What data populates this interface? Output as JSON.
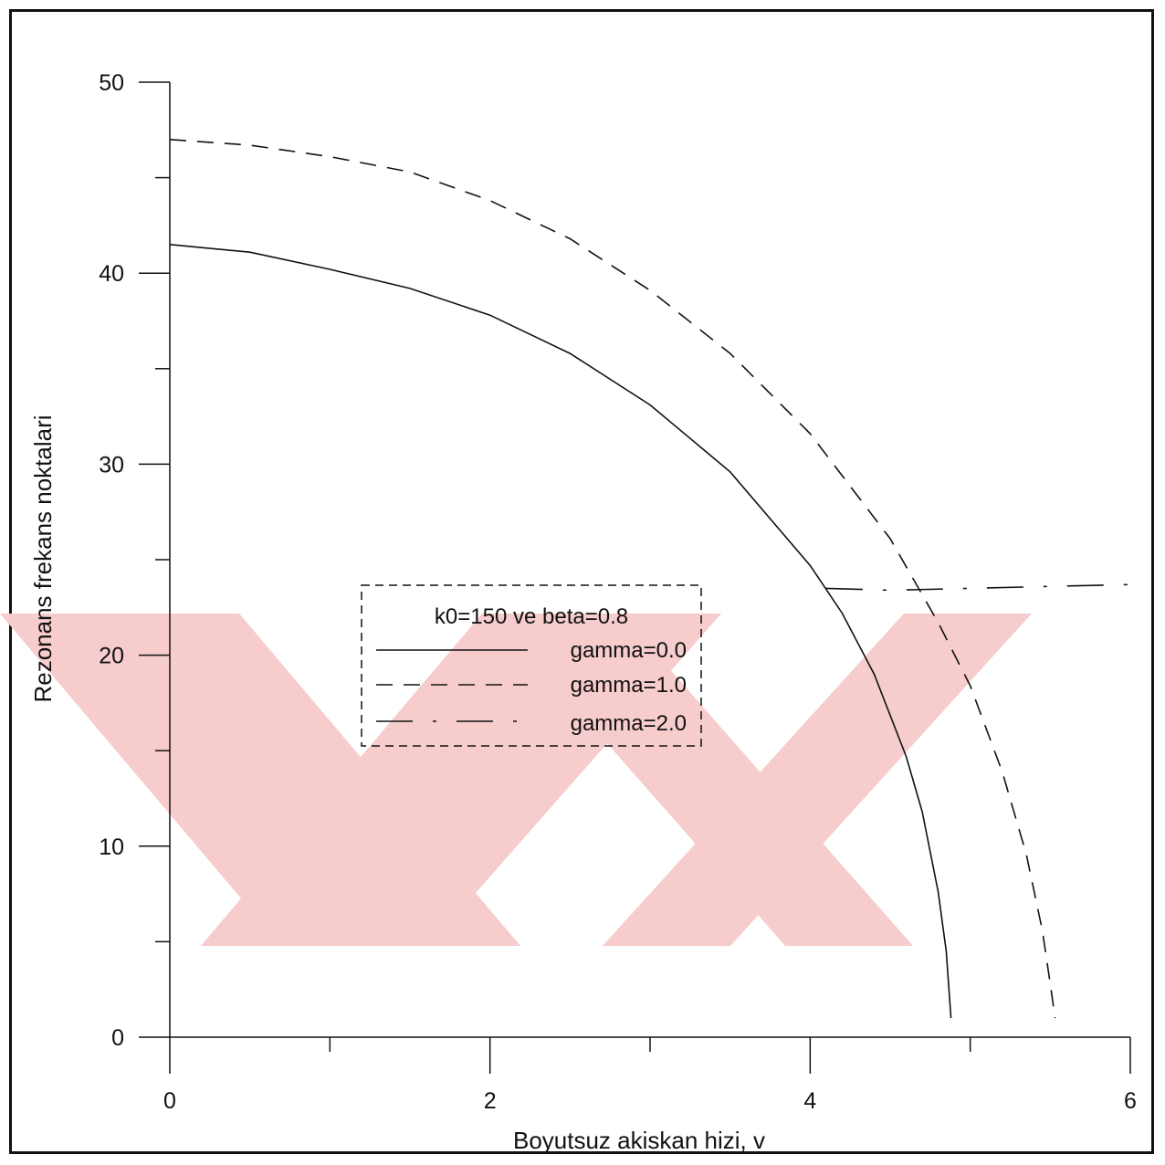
{
  "chart_data": {
    "type": "line",
    "title": "",
    "xlabel": "Boyutsuz akiskan hizi, v",
    "ylabel": "Rezonans frekans noktalari",
    "xlim": [
      0,
      6
    ],
    "ylim": [
      0,
      50
    ],
    "x_ticks": [
      0,
      2,
      4,
      6
    ],
    "y_ticks": [
      0,
      10,
      20,
      30,
      40,
      50
    ],
    "grid": false,
    "legend": {
      "title": "k0=150 ve beta=0.8",
      "placement": "center-left",
      "entries": [
        "gamma=0.0",
        "gamma=1.0",
        "gamma=2.0"
      ]
    },
    "series": [
      {
        "name": "gamma=0.0",
        "style": "solid",
        "x": [
          0,
          0.5,
          1.0,
          1.5,
          2.0,
          2.5,
          3.0,
          3.5,
          4.0,
          4.2,
          4.4,
          4.6,
          4.7,
          4.8,
          4.85,
          4.88
        ],
        "y": [
          41.5,
          41.1,
          40.2,
          39.2,
          37.8,
          35.8,
          33.1,
          29.6,
          24.7,
          22.2,
          19.0,
          14.7,
          11.8,
          7.6,
          4.5,
          1.0
        ]
      },
      {
        "name": "gamma=1.0",
        "style": "dashed",
        "x": [
          0,
          0.5,
          1.0,
          1.5,
          2.0,
          2.5,
          3.0,
          3.5,
          4.0,
          4.5,
          4.8,
          5.0,
          5.2,
          5.35,
          5.45,
          5.5,
          5.53
        ],
        "y": [
          47.0,
          46.7,
          46.1,
          45.3,
          43.8,
          41.8,
          39.1,
          35.8,
          31.6,
          26.1,
          21.7,
          18.4,
          13.9,
          9.6,
          5.6,
          2.8,
          1.0
        ]
      },
      {
        "name": "gamma=2.0",
        "style": "dashdot",
        "x": [
          4.1,
          4.5,
          5.0,
          5.5,
          6.0
        ],
        "y": [
          23.5,
          23.4,
          23.5,
          23.6,
          23.7
        ]
      }
    ],
    "colors": {
      "line": "#111111",
      "watermark": "#f6cccc"
    }
  }
}
